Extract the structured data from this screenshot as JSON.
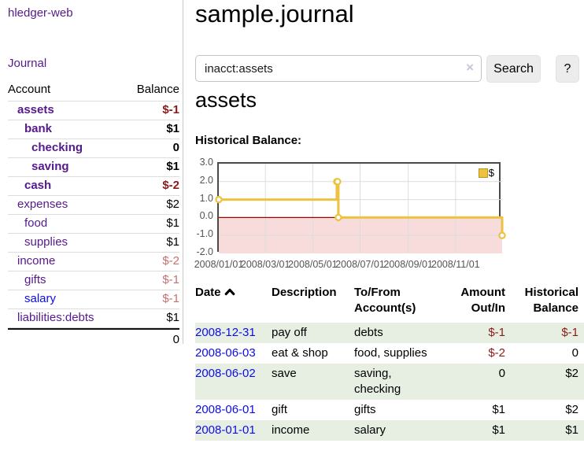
{
  "colors": {
    "accent_gold": "#edc240",
    "link_purple": "#551a8b",
    "link_blue": "#0d0de8",
    "negative_strong": "#8b1a1a",
    "negative_soft": "#c57070",
    "row_stripe_green": "#e7efe3"
  },
  "sidebar": {
    "brand": "hledger-web",
    "journal_link": "Journal",
    "accounts_table": {
      "headers": {
        "account": "Account",
        "balance": "Balance"
      },
      "rows": [
        {
          "account": "assets",
          "balance": "$-1",
          "depth": 1,
          "bold": true,
          "negative": "strong"
        },
        {
          "account": "bank",
          "balance": "$1",
          "depth": 2,
          "bold": true
        },
        {
          "account": "checking",
          "balance": "0",
          "depth": 3,
          "bold": true
        },
        {
          "account": "saving",
          "balance": "$1",
          "depth": 3,
          "bold": true
        },
        {
          "account": "cash",
          "balance": "$-2",
          "depth": 2,
          "bold": true,
          "negative": "strong"
        },
        {
          "account": "expenses",
          "balance": "$2",
          "depth": 1
        },
        {
          "account": "food",
          "balance": "$1",
          "depth": 2
        },
        {
          "account": "supplies",
          "balance": "$1",
          "depth": 2
        },
        {
          "account": "income",
          "balance": "$-2",
          "depth": 1,
          "negative": "soft"
        },
        {
          "account": "gifts",
          "balance": "$-1",
          "depth": 2,
          "negative": "soft"
        },
        {
          "account": "salary",
          "balance": "$-1",
          "depth": 2,
          "negative": "soft",
          "link_style": "unvisited"
        },
        {
          "account": "liabilities:debts",
          "balance": "$1",
          "depth": 1
        }
      ],
      "total": "0"
    }
  },
  "header": {
    "title": "sample.journal"
  },
  "search": {
    "value": "inacct:assets",
    "clear_icon": "×",
    "search_button": "Search",
    "help_button": "?"
  },
  "account_view": {
    "heading": "assets",
    "chart_title": "Historical Balance:"
  },
  "chart_data": {
    "type": "line",
    "title": "Historical Balance",
    "series": [
      {
        "name": "$",
        "color": "#edc240",
        "step": true,
        "points": [
          {
            "date": "2008-01-01",
            "x_days": 0,
            "y": 1
          },
          {
            "date": "2008-06-01",
            "x_days": 152,
            "y": 2
          },
          {
            "date": "2008-06-02",
            "x_days": 153,
            "y": 2
          },
          {
            "date": "2008-06-03",
            "x_days": 154,
            "y": 0
          },
          {
            "date": "2008-12-31",
            "x_days": 365,
            "y": -1
          }
        ]
      }
    ],
    "x_ticks": [
      {
        "days": 0,
        "label": "2008/01/01"
      },
      {
        "days": 60,
        "label": "2008/03/01"
      },
      {
        "days": 121,
        "label": "2008/05/01"
      },
      {
        "days": 182,
        "label": "2008/07/01"
      },
      {
        "days": 244,
        "label": "2008/09/01"
      },
      {
        "days": 305,
        "label": "2008/11/01"
      }
    ],
    "xlim_days": [
      0,
      365
    ],
    "y_ticks": [
      3.0,
      2.0,
      1.0,
      0.0,
      -1.0,
      -2.0
    ],
    "y_tick_labels": [
      "3.0",
      "2.0",
      "1.0",
      "0.0",
      "-1.0",
      "-2.0"
    ],
    "ylim": [
      -2,
      3
    ],
    "grid": true,
    "negative_region_fill": "#f8dcdc",
    "zero_line_color": "#a40000",
    "legend": {
      "label": "$",
      "position": "top-right"
    }
  },
  "register": {
    "headers": [
      {
        "line1": "Date",
        "line2": "",
        "sorted": "ascending"
      },
      {
        "line1": "Description",
        "line2": ""
      },
      {
        "line1": "To/From",
        "line2": "Account(s)"
      },
      {
        "line1": "Amount",
        "line2": "Out/In"
      },
      {
        "line1": "Historical",
        "line2": "Balance"
      }
    ],
    "rows": [
      {
        "date": "2008-12-31",
        "description": "pay off",
        "accounts": "debts",
        "amount": "$-1",
        "amount_negative": true,
        "balance": "$-1",
        "balance_negative": true
      },
      {
        "date": "2008-06-03",
        "description": "eat & shop",
        "accounts": "food, supplies",
        "amount": "$-2",
        "amount_negative": true,
        "balance": "0",
        "balance_negative": false
      },
      {
        "date": "2008-06-02",
        "description": "save",
        "accounts": "saving, checking",
        "amount": "0",
        "amount_negative": false,
        "balance": "$2",
        "balance_negative": false
      },
      {
        "date": "2008-06-01",
        "description": "gift",
        "accounts": "gifts",
        "amount": "$1",
        "amount_negative": false,
        "balance": "$2",
        "balance_negative": false
      },
      {
        "date": "2008-01-01",
        "description": "income",
        "accounts": "salary",
        "amount": "$1",
        "amount_negative": false,
        "balance": "$1",
        "balance_negative": false
      }
    ]
  }
}
